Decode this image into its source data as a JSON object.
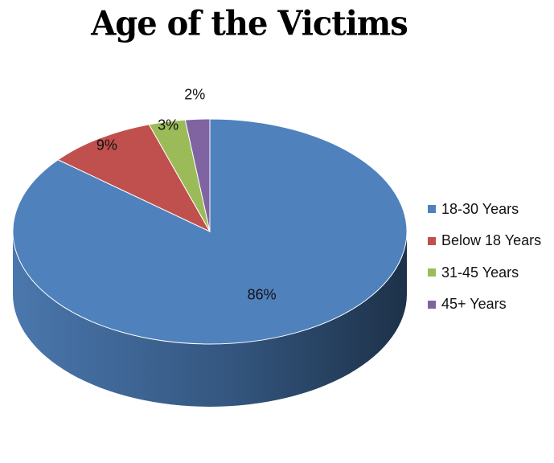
{
  "chart_data": {
    "type": "pie",
    "title": "Age of the Victims",
    "legend_position": "right",
    "slices": [
      {
        "label": "18-30 Years",
        "value": 86,
        "display": "86%",
        "color": "#4f81bd"
      },
      {
        "label": "Below 18 Years",
        "value": 9,
        "display": "9%",
        "color": "#c0504d"
      },
      {
        "label": "31-45 Years",
        "value": 3,
        "display": "3%",
        "color": "#9bbb59"
      },
      {
        "label": "45+ Years",
        "value": 2,
        "display": "2%",
        "color": "#8064a2"
      }
    ]
  }
}
